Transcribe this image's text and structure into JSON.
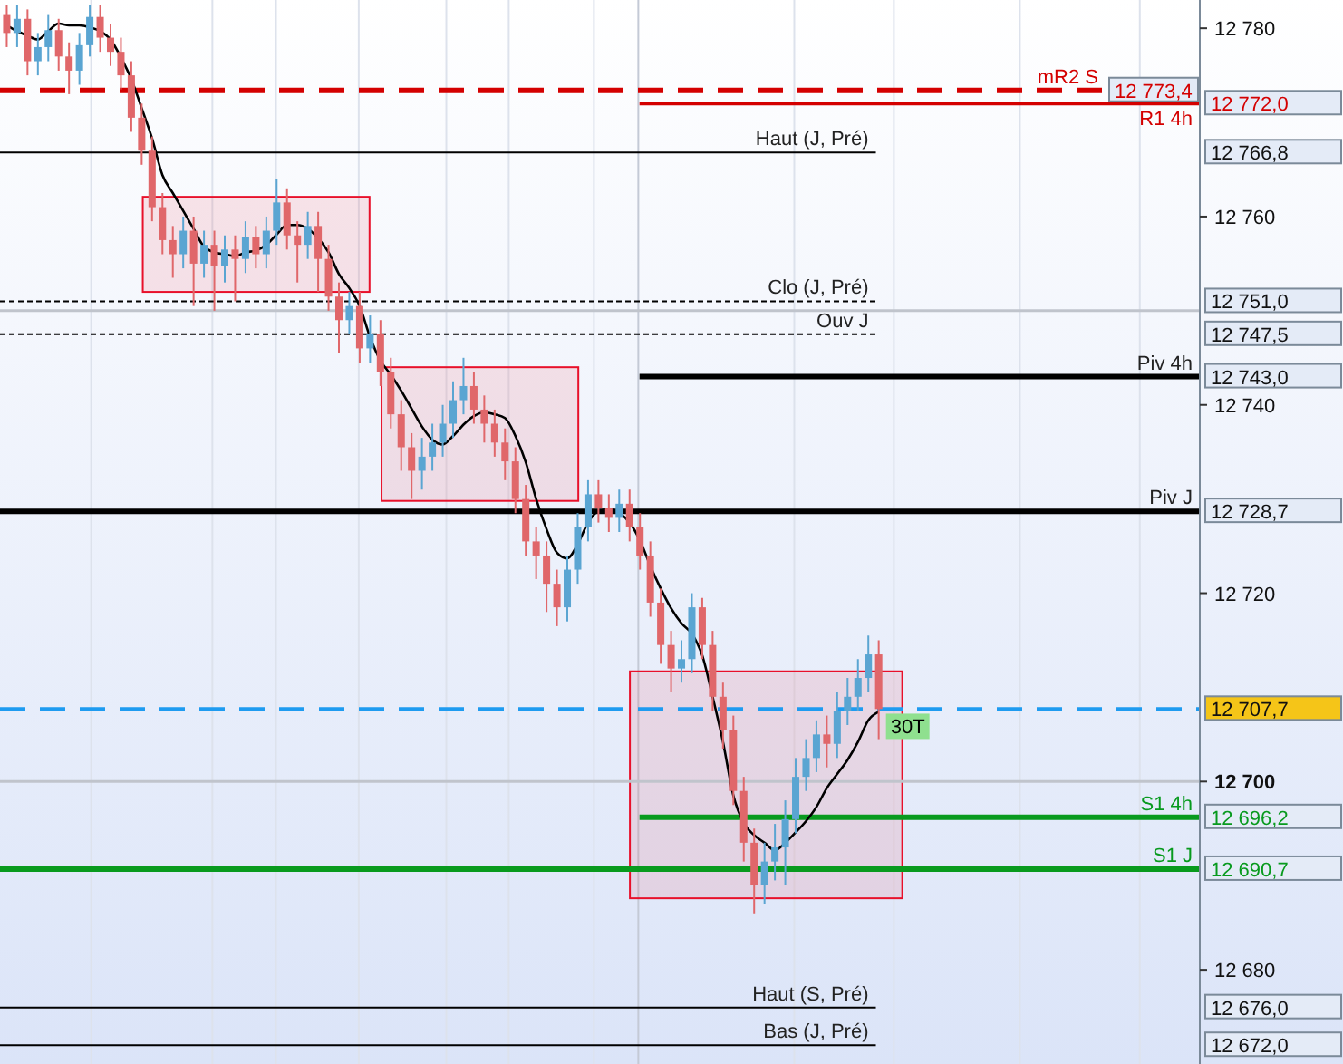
{
  "chart_data": {
    "type": "candlestick",
    "categories": [
      null,
      null,
      null,
      null,
      null,
      null,
      null,
      null,
      null,
      null,
      null,
      null,
      null,
      null,
      null,
      null,
      null,
      null,
      null,
      null,
      null,
      null,
      null,
      null,
      null,
      null,
      null,
      null,
      null,
      null,
      null,
      null,
      null,
      null,
      null,
      null,
      null,
      null,
      null,
      null,
      null,
      null,
      null,
      null,
      null,
      null,
      null,
      null,
      null,
      null,
      null,
      null,
      null,
      null,
      null,
      null,
      null,
      null,
      null,
      null,
      null,
      null,
      null,
      null,
      null,
      null,
      null,
      null,
      null,
      null,
      null,
      null,
      null,
      null,
      null,
      null,
      null,
      null,
      null,
      null,
      null,
      null,
      null,
      null,
      null
    ],
    "ylim": [
      12670,
      12783
    ],
    "yticks": [
      {
        "value": 12680,
        "label": "12 680"
      },
      {
        "value": 12700,
        "label": "12 700"
      },
      {
        "value": 12720,
        "label": "12 720"
      },
      {
        "value": 12740,
        "label": "12 740"
      },
      {
        "value": 12760,
        "label": "12 760"
      },
      {
        "value": 12780,
        "label": "12 780"
      },
      {
        "value": 12772.0,
        "label": "12 772,0"
      },
      {
        "value": 12766.8,
        "label": "12 766,8"
      },
      {
        "value": 12751.0,
        "label": "12 751,0"
      },
      {
        "value": 12747.5,
        "label": "12 747,5"
      },
      {
        "value": 12743.0,
        "label": "12 743,0"
      },
      {
        "value": 12728.7,
        "label": "12 728,7"
      },
      {
        "value": 12707.7,
        "label": "12 707,7"
      },
      {
        "value": 12696.2,
        "label": "12 696,2"
      },
      {
        "value": 12690.7,
        "label": "12 690,7"
      },
      {
        "value": 12676.0,
        "label": "12 676,0"
      },
      {
        "value": 12672.0,
        "label": "12 672,0"
      }
    ],
    "grid": "x",
    "annotations": [
      {
        "text": "12 773,4",
        "y": 12773.4
      }
    ],
    "series": [
      {
        "type": "candlestick",
        "ohlc": [
          [
            12781.5,
            12782.5,
            12778.0,
            12779.5
          ],
          [
            12779.5,
            12782.5,
            12778.0,
            12781.0
          ],
          [
            12781.0,
            12782.0,
            12775.0,
            12776.5
          ],
          [
            12776.5,
            12779.5,
            12775.0,
            12778.0
          ],
          [
            12778.0,
            12781.5,
            12776.5,
            12779.8
          ],
          [
            12779.8,
            12781.0,
            12775.5,
            12777.0
          ],
          [
            12777.0,
            12778.5,
            12773.0,
            12775.5
          ],
          [
            12775.5,
            12779.5,
            12774.0,
            12778.2
          ],
          [
            12778.2,
            12782.5,
            12777.0,
            12781.2
          ],
          [
            12781.2,
            12782.5,
            12777.5,
            12779.0
          ],
          [
            12779.0,
            12780.5,
            12776.0,
            12777.5
          ],
          [
            12777.5,
            12779.0,
            12773.5,
            12775.0
          ],
          [
            12775.0,
            12776.5,
            12769.0,
            12770.5
          ],
          [
            12770.5,
            12772.0,
            12765.5,
            12767.0
          ],
          [
            12767.0,
            12768.5,
            12759.5,
            12761.0
          ],
          [
            12761.0,
            12762.5,
            12756.0,
            12757.5
          ],
          [
            12757.5,
            12759.0,
            12753.5,
            12756.0
          ],
          [
            12756.0,
            12760.0,
            12754.5,
            12758.5
          ],
          [
            12758.5,
            12760.0,
            12750.5,
            12755.0
          ],
          [
            12755.0,
            12758.5,
            12753.5,
            12757.0
          ],
          [
            12757.0,
            12758.5,
            12750.0,
            12754.8
          ],
          [
            12754.8,
            12758.0,
            12753.0,
            12756.5
          ],
          [
            12756.5,
            12758.0,
            12751.0,
            12755.5
          ],
          [
            12755.5,
            12759.5,
            12754.0,
            12757.8
          ],
          [
            12757.8,
            12759.0,
            12754.5,
            12756.0
          ],
          [
            12756.0,
            12760.0,
            12754.5,
            12758.5
          ],
          [
            12758.5,
            12764.0,
            12757.0,
            12761.5
          ],
          [
            12761.5,
            12763.0,
            12756.5,
            12758.0
          ],
          [
            12758.0,
            12759.5,
            12753.0,
            12757.0
          ],
          [
            12757.0,
            12760.5,
            12755.5,
            12759.0
          ],
          [
            12759.0,
            12760.5,
            12752.0,
            12755.5
          ],
          [
            12755.5,
            12757.0,
            12750.0,
            12751.5
          ],
          [
            12751.5,
            12753.0,
            12745.5,
            12749.0
          ],
          [
            12749.0,
            12752.0,
            12747.5,
            12750.5
          ],
          [
            12750.5,
            12752.0,
            12744.5,
            12746.0
          ],
          [
            12746.0,
            12749.5,
            12744.5,
            12747.5
          ],
          [
            12747.5,
            12749.0,
            12742.0,
            12743.5
          ],
          [
            12743.5,
            12745.0,
            12737.5,
            12739.0
          ],
          [
            12739.0,
            12740.5,
            12733.0,
            12735.5
          ],
          [
            12735.5,
            12737.0,
            12730.0,
            12733.0
          ],
          [
            12733.0,
            12736.5,
            12731.0,
            12734.5
          ],
          [
            12734.5,
            12738.0,
            12733.0,
            12736.0
          ],
          [
            12736.0,
            12740.0,
            12734.5,
            12738.0
          ],
          [
            12738.0,
            12742.5,
            12736.5,
            12740.5
          ],
          [
            12740.5,
            12745.0,
            12739.0,
            12742.0
          ],
          [
            12742.0,
            12743.5,
            12738.0,
            12739.5
          ],
          [
            12739.5,
            12741.0,
            12736.0,
            12738.0
          ],
          [
            12738.0,
            12739.5,
            12734.5,
            12736.0
          ],
          [
            12736.0,
            12737.5,
            12732.0,
            12734.0
          ],
          [
            12734.0,
            12735.5,
            12728.5,
            12730.0
          ],
          [
            12730.0,
            12731.5,
            12724.0,
            12725.5
          ],
          [
            12725.5,
            12727.0,
            12721.5,
            12724.0
          ],
          [
            12724.0,
            12725.5,
            12718.0,
            12721.0
          ],
          [
            12721.0,
            12722.5,
            12716.5,
            12718.5
          ],
          [
            12718.5,
            12724.0,
            12717.0,
            12722.5
          ],
          [
            12722.5,
            12728.5,
            12721.0,
            12727.0
          ],
          [
            12727.0,
            12732.0,
            12725.5,
            12730.5
          ],
          [
            12730.5,
            12732.0,
            12727.5,
            12729.0
          ],
          [
            12729.0,
            12730.5,
            12726.5,
            12728.0
          ],
          [
            12728.0,
            12731.0,
            12726.5,
            12729.5
          ],
          [
            12729.5,
            12731.0,
            12725.5,
            12727.0
          ],
          [
            12727.0,
            12728.5,
            12722.5,
            12724.0
          ],
          [
            12724.0,
            12725.5,
            12717.5,
            12719.0
          ],
          [
            12719.0,
            12720.5,
            12712.5,
            12714.5
          ],
          [
            12714.5,
            12716.0,
            12709.5,
            12712.0
          ],
          [
            12712.0,
            12715.0,
            12710.5,
            12713.0
          ],
          [
            12713.0,
            12720.0,
            12711.5,
            12718.5
          ],
          [
            12718.5,
            12719.5,
            12713.0,
            12714.5
          ],
          [
            12714.5,
            12716.0,
            12707.5,
            12709.0
          ],
          [
            12709.0,
            12710.5,
            12703.5,
            12705.5
          ],
          [
            12705.5,
            12707.0,
            12697.5,
            12699.0
          ],
          [
            12699.0,
            12700.5,
            12691.5,
            12693.5
          ],
          [
            12693.5,
            12695.0,
            12686.0,
            12689.0
          ],
          [
            12689.0,
            12693.5,
            12687.0,
            12691.5
          ],
          [
            12691.5,
            12695.5,
            12689.5,
            12693.0
          ],
          [
            12693.0,
            12698.0,
            12689.0,
            12696.0
          ],
          [
            12696.0,
            12702.5,
            12694.5,
            12700.5
          ],
          [
            12700.5,
            12704.5,
            12699.0,
            12702.5
          ],
          [
            12702.5,
            12706.5,
            12701.0,
            12705.0
          ],
          [
            12705.0,
            12707.0,
            12701.5,
            12704.0
          ],
          [
            12704.0,
            12709.5,
            12702.5,
            12707.5
          ],
          [
            12707.5,
            12711.0,
            12706.0,
            12709.0
          ],
          [
            12709.0,
            12713.0,
            12707.5,
            12711.0
          ],
          [
            12711.0,
            12715.5,
            12709.5,
            12713.5
          ],
          [
            12713.5,
            12715.0,
            12704.5,
            12707.7
          ]
        ]
      },
      {
        "type": "line",
        "name": "30T",
        "color": "#000000",
        "values": [
          12780.3,
          12779.7,
          12779.2,
          12778.8,
          12779.7,
          12780.5,
          12780.3,
          12780.3,
          12780.1,
          12779.7,
          12778.8,
          12776.9,
          12774.6,
          12771.5,
          12768.3,
          12764.4,
          12762.5,
          12760.6,
          12758.7,
          12756.8,
          12756.2,
          12756.0,
          12755.8,
          12756.2,
          12756.4,
          12757.0,
          12758.1,
          12759.1,
          12759.1,
          12758.7,
          12757.7,
          12756.2,
          12753.9,
          12752.4,
          12750.5,
          12747.2,
          12744.7,
          12743.2,
          12741.5,
          12739.6,
          12737.7,
          12736.3,
          12735.8,
          12736.7,
          12737.9,
          12738.8,
          12739.2,
          12739.0,
          12738.6,
          12736.7,
          12733.9,
          12730.0,
          12726.8,
          12724.3,
          12723.7,
          12725.2,
          12727.5,
          12728.7,
          12728.9,
          12728.5,
          12727.5,
          12725.6,
          12722.9,
          12720.5,
          12718.4,
          12716.8,
          12715.7,
          12713.4,
          12709.0,
          12704.2,
          12698.5,
          12695.6,
          12694.3,
          12693.5,
          12692.7,
          12693.5,
          12694.6,
          12695.8,
          12697.3,
          12699.3,
          12700.8,
          12702.3,
          12704.2,
          12706.5,
          12707.4
        ]
      }
    ],
    "ref_lines": [
      {
        "axis": "y",
        "value": 12773.4,
        "label": "mR2 S",
        "color": "#d40000",
        "line_style": "dashed"
      },
      {
        "axis": "y",
        "value": 12772.0,
        "label": "R1 4h",
        "color": "#d40000",
        "line_style": "solid"
      },
      {
        "axis": "y",
        "value": 12766.8,
        "label": "Haut (J, Pré)",
        "color": "#000000",
        "line_style": "solid"
      },
      {
        "axis": "y",
        "value": 12751.0,
        "label": "Clo (J, Pré)",
        "color": "#000000",
        "line_style": "dotted"
      },
      {
        "axis": "y",
        "value": 12750,
        "label": null,
        "color": "#c0c4cc",
        "line_style": "solid"
      },
      {
        "axis": "y",
        "value": 12747.5,
        "label": "Ouv J",
        "color": "#000000",
        "line_style": "dotted"
      },
      {
        "axis": "y",
        "value": 12743.0,
        "label": "Piv 4h",
        "color": "#000000",
        "line_style": "solid"
      },
      {
        "axis": "y",
        "value": 12728.7,
        "label": "Piv J",
        "color": "#000000",
        "line_style": "solid"
      },
      {
        "axis": "y",
        "value": 12707.7,
        "label": null,
        "color": "#1e9bf0",
        "line_style": "dashed"
      },
      {
        "axis": "y",
        "value": 12700,
        "label": null,
        "color": "#c0c4cc",
        "line_style": "solid"
      },
      {
        "axis": "y",
        "value": 12696.2,
        "label": "S1 4h",
        "color": "#089a1e",
        "line_style": "solid"
      },
      {
        "axis": "y",
        "value": 12690.7,
        "label": "S1 J",
        "color": "#089a1e",
        "line_style": "solid"
      },
      {
        "axis": "y",
        "value": 12676.0,
        "label": "Haut (S, Pré)",
        "color": "#000000",
        "line_style": "solid"
      },
      {
        "axis": "y",
        "value": 12672.0,
        "label": "Bas (J, Pré)",
        "color": "#000000",
        "line_style": "solid"
      }
    ],
    "bands": [
      {
        "axis": "y",
        "from": 12752.0,
        "to": 12762.1,
        "color": "#e8102a"
      },
      {
        "axis": "y",
        "from": 12729.8,
        "to": 12744.0,
        "color": "#e8102a"
      },
      {
        "axis": "y",
        "from": 12687.6,
        "to": 12711.7,
        "color": "#e8102a"
      }
    ]
  }
}
